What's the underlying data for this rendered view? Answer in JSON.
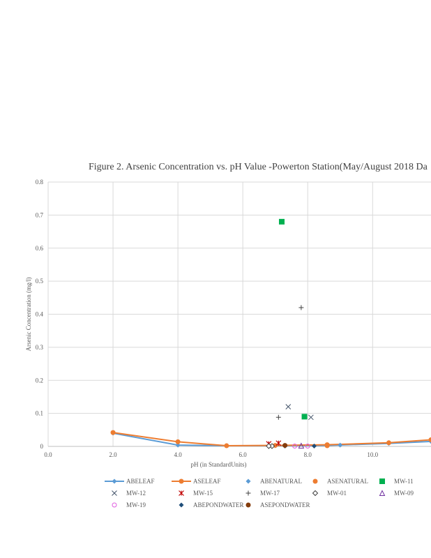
{
  "chart_data": {
    "type": "scatter",
    "title": "Figure 2. Arsenic Concentration  vs. pH Value  -Powerton  Station(May/August  2018 Da",
    "xlabel": "pH (in StandardUnits)",
    "ylabel": "Arsenic Concentration  (mg/l)",
    "xlim": [
      0,
      11.8
    ],
    "ylim": [
      0,
      0.8
    ],
    "x_ticks": [
      "0.0",
      "2.0",
      "4.0",
      "6.0",
      "8.0",
      "10.0"
    ],
    "y_ticks": [
      "0",
      "0.1",
      "0.2",
      "0.3",
      "0.4",
      "0.5",
      "0.6",
      "0.7",
      "0.8"
    ],
    "grid": true,
    "legend_position": "bottom",
    "series": [
      {
        "name": "ABELEAF",
        "kind": "line",
        "color": "#5b9bd5",
        "marker": "diamond",
        "points": [
          [
            2.0,
            0.04
          ],
          [
            4.0,
            0.004
          ],
          [
            5.5,
            0.002
          ],
          [
            7.0,
            0.002
          ],
          [
            8.6,
            0.003
          ],
          [
            10.5,
            0.009
          ],
          [
            11.8,
            0.015
          ]
        ]
      },
      {
        "name": "ASELEAF",
        "kind": "line",
        "color": "#ed7d31",
        "marker": "circle",
        "points": [
          [
            2.0,
            0.042
          ],
          [
            4.0,
            0.014
          ],
          [
            5.5,
            0.002
          ],
          [
            7.0,
            0.003
          ],
          [
            8.6,
            0.005
          ],
          [
            10.5,
            0.011
          ],
          [
            11.8,
            0.02
          ]
        ]
      },
      {
        "name": "ABENATURAL",
        "kind": "scatter",
        "color": "#5b9bd5",
        "marker": "diamond",
        "points": [
          [
            9.0,
            0.004
          ]
        ]
      },
      {
        "name": "ASENATURAL",
        "kind": "scatter",
        "color": "#ed7d31",
        "marker": "circle",
        "points": [
          [
            8.6,
            0.004
          ],
          [
            8.6,
            0.002
          ]
        ]
      },
      {
        "name": "MW-11",
        "kind": "scatter",
        "color": "#00b050",
        "marker": "square",
        "points": [
          [
            7.2,
            0.68
          ],
          [
            7.9,
            0.09
          ]
        ]
      },
      {
        "name": "MW-12",
        "kind": "scatter",
        "color": "#44546a",
        "marker": "x",
        "points": [
          [
            7.4,
            0.12
          ],
          [
            8.1,
            0.088
          ]
        ]
      },
      {
        "name": "MW-15",
        "kind": "scatter",
        "color": "#c00000",
        "marker": "star",
        "points": [
          [
            6.8,
            0.008
          ],
          [
            7.1,
            0.01
          ]
        ]
      },
      {
        "name": "MW-17",
        "kind": "scatter",
        "color": "#404040",
        "marker": "plus",
        "points": [
          [
            7.8,
            0.42
          ],
          [
            7.1,
            0.088
          ]
        ]
      },
      {
        "name": "MW-01",
        "kind": "scatter",
        "color": "#404040",
        "marker": "hollow-diamond",
        "points": [
          [
            6.9,
            0.001
          ],
          [
            6.8,
            0.001
          ]
        ]
      },
      {
        "name": "MW-09",
        "kind": "scatter",
        "color": "#7030a0",
        "marker": "triangle",
        "points": [
          [
            7.8,
            0.002
          ]
        ]
      },
      {
        "name": "MW-19",
        "kind": "scatter",
        "color": "#e05ce0",
        "marker": "hollow-circle",
        "points": [
          [
            7.6,
            0.001
          ],
          [
            8.0,
            0.001
          ]
        ]
      },
      {
        "name": "ABEPONDWATER",
        "kind": "scatter",
        "color": "#1f4e79",
        "marker": "diamond",
        "points": [
          [
            8.2,
            0.001
          ],
          [
            7.3,
            0.001
          ]
        ]
      },
      {
        "name": "ASEPONDWATER",
        "kind": "scatter",
        "color": "#843c0c",
        "marker": "circle",
        "points": [
          [
            7.3,
            0.003
          ]
        ]
      }
    ]
  }
}
